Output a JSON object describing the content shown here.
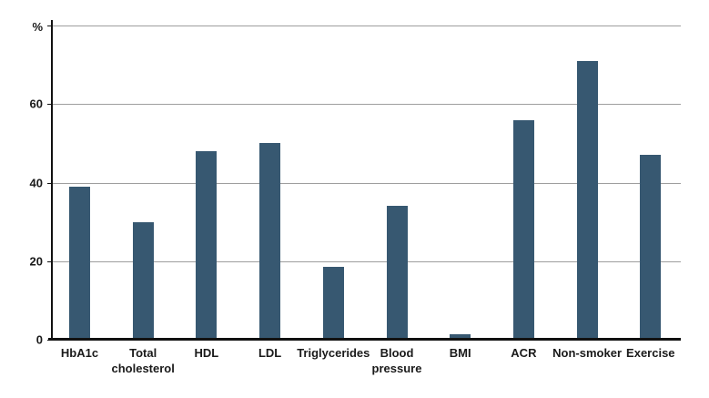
{
  "chart_data": {
    "type": "bar",
    "title": "",
    "xlabel": "",
    "ylabel": "%",
    "categories": [
      "HbA1c",
      "Total cholesterol",
      "HDL",
      "LDL",
      "Triglycerides",
      "Blood pressure",
      "BMI",
      "ACR",
      "Non-smoker",
      "Exercise"
    ],
    "values": [
      39,
      30,
      48,
      50,
      18.5,
      34,
      1.5,
      56,
      71,
      47
    ],
    "ylim": [
      0,
      80
    ],
    "yticks": [
      0,
      20,
      40,
      60,
      80
    ],
    "ytick_labels": [
      "0",
      "20",
      "40",
      "60",
      "%"
    ],
    "grid": true,
    "legend": false
  },
  "colors": {
    "bar": "#375871",
    "gridline": "#9e9e9e",
    "axis": "#111111",
    "background": "#ffffff",
    "text": "#1a1a1a"
  }
}
